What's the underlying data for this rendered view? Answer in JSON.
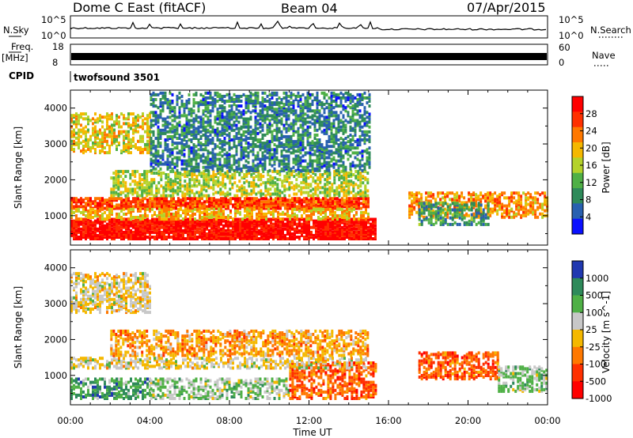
{
  "header": {
    "station": "Dome C East (fitACF)",
    "beam": "Beam 04",
    "date": "07/Apr/2015"
  },
  "noise_panel": {
    "left_label": "N.Sky",
    "right_label": "N.Search",
    "left_ticks": [
      "10^5",
      "10^0"
    ],
    "right_ticks": [
      "10^5",
      "10^0"
    ]
  },
  "freq_panel": {
    "left_label": "Freq.",
    "left_unit": "[MHz]",
    "right_label": "Nave",
    "left_ticks": [
      "18",
      "8"
    ],
    "right_ticks": [
      "60",
      "0"
    ]
  },
  "cpid": {
    "label": "CPID",
    "program": "twofsound 3501"
  },
  "chart_data": [
    {
      "type": "heatmap",
      "title": "",
      "xlabel": "Time UT",
      "ylabel": "Slant Range [km]",
      "x_ticks": [
        "00:00",
        "04:00",
        "08:00",
        "12:00",
        "16:00",
        "20:00",
        "00:00"
      ],
      "x_range_hours": [
        0,
        24
      ],
      "y_ticks": [
        "1000",
        "2000",
        "3000",
        "4000"
      ],
      "ylim": [
        180,
        4500
      ],
      "colorbar_label": "Power [dB]",
      "colorbar_ticks": [
        "4",
        "8",
        "12",
        "16",
        "20",
        "24",
        "28"
      ],
      "clim": [
        0,
        32
      ],
      "colors": [
        "#0a10ff",
        "#2860b0",
        "#2e8a5a",
        "#4fb046",
        "#b4d22a",
        "#f5b800",
        "#ff7800",
        "#ff3000",
        "#ff0000"
      ],
      "echo_regions": [
        {
          "t0": 0.0,
          "t1": 15.3,
          "r0": 400,
          "r1": 950,
          "value": 30
        },
        {
          "t0": 0.0,
          "t1": 15.0,
          "r0": 1250,
          "r1": 1550,
          "value": 26
        },
        {
          "t0": 0.0,
          "t1": 15.0,
          "r0": 950,
          "r1": 1250,
          "value": 20
        },
        {
          "t0": 2.0,
          "t1": 15.0,
          "r0": 1600,
          "r1": 2300,
          "value": 16
        },
        {
          "t0": 0.0,
          "t1": 4.0,
          "r0": 2800,
          "r1": 3900,
          "value": 18
        },
        {
          "t0": 17.0,
          "t1": 24.0,
          "r0": 1000,
          "r1": 1700,
          "value": 22
        },
        {
          "t0": 17.5,
          "t1": 21.0,
          "r0": 800,
          "r1": 1400,
          "value": 10
        },
        {
          "t0": 4.0,
          "t1": 15.0,
          "r0": 2300,
          "r1": 4500,
          "value": 8
        }
      ]
    },
    {
      "type": "heatmap",
      "title": "",
      "xlabel": "Time UT",
      "ylabel": "Slant Range [km]",
      "x_ticks": [
        "00:00",
        "04:00",
        "08:00",
        "12:00",
        "16:00",
        "20:00",
        "00:00"
      ],
      "x_range_hours": [
        0,
        24
      ],
      "y_ticks": [
        "1000",
        "2000",
        "3000",
        "4000"
      ],
      "ylim": [
        180,
        4500
      ],
      "colorbar_label": "Velocity [m s^-1]",
      "colorbar_ticks": [
        "1000",
        "500",
        "100",
        "25",
        "-25",
        "-100",
        "-500",
        "-1000"
      ],
      "colors": [
        "#2038b0",
        "#2e8a5a",
        "#4fb046",
        "#c8c8c8",
        "#f5b800",
        "#ff7800",
        "#ff3000",
        "#ff0000"
      ],
      "echo_regions": [
        {
          "t0": 0.0,
          "t1": 4.0,
          "r0": 400,
          "r1": 950,
          "value": 150
        },
        {
          "t0": 4.0,
          "t1": 11.0,
          "r0": 400,
          "r1": 950,
          "value": 25
        },
        {
          "t0": 11.0,
          "t1": 15.3,
          "r0": 400,
          "r1": 1400,
          "value": -120
        },
        {
          "t0": 0.0,
          "t1": 15.0,
          "r0": 1250,
          "r1": 1550,
          "value": 10
        },
        {
          "t0": 2.0,
          "t1": 15.0,
          "r0": 1600,
          "r1": 2300,
          "value": -100
        },
        {
          "t0": 0.0,
          "t1": 4.0,
          "r0": 2800,
          "r1": 3900,
          "value": 15
        },
        {
          "t0": 17.5,
          "t1": 21.5,
          "r0": 950,
          "r1": 1700,
          "value": -120
        },
        {
          "t0": 21.5,
          "t1": 24.0,
          "r0": 600,
          "r1": 1300,
          "value": 80
        }
      ]
    }
  ]
}
